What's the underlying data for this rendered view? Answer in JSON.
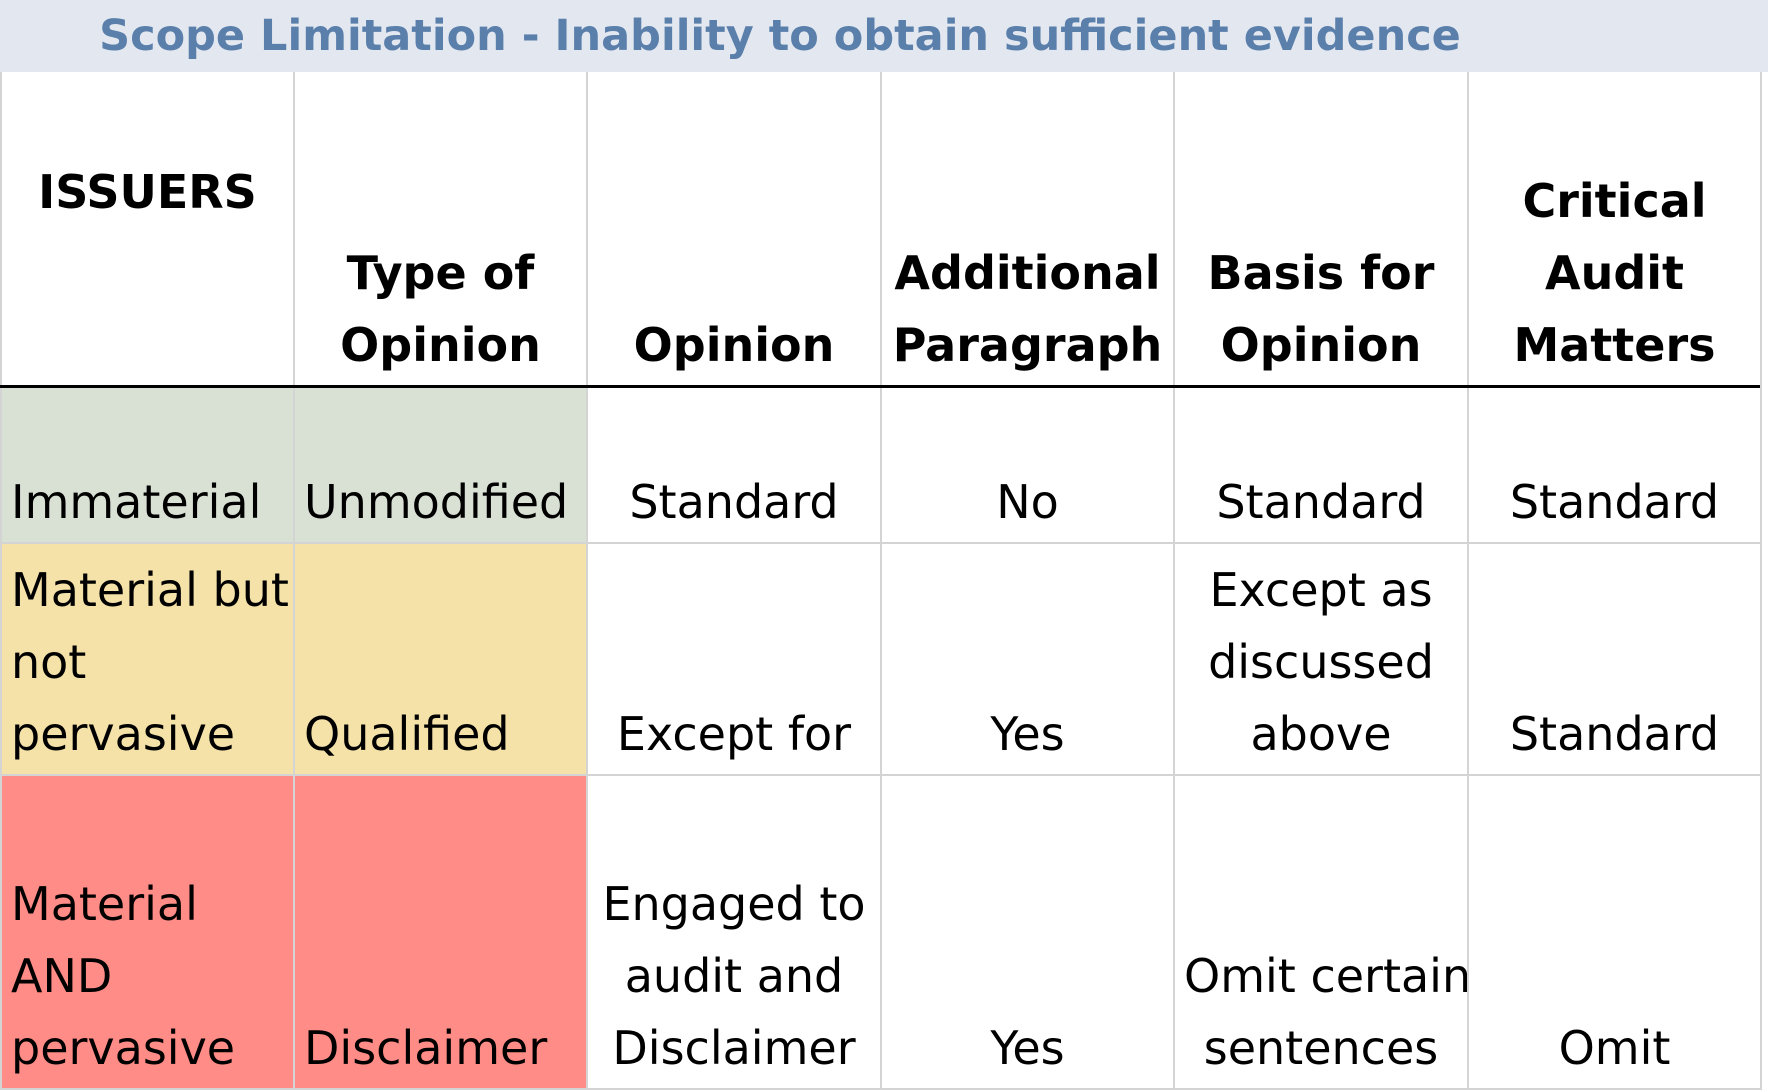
{
  "title": "Scope Limitation - Inability to obtain sufficient evidence",
  "headers": [
    [
      "ISSUERS"
    ],
    [
      "Type of",
      "Opinion"
    ],
    [
      "Opinion"
    ],
    [
      "Additional",
      "Paragraph"
    ],
    [
      "Basis for",
      "Opinion"
    ],
    [
      "Critical",
      "Audit",
      "Matters"
    ]
  ],
  "rows": [
    {
      "color": "#d9e1d4",
      "cells": [
        [
          "Immaterial"
        ],
        [
          "Unmodified"
        ],
        [
          "Standard"
        ],
        [
          "No"
        ],
        [
          "Standard"
        ],
        [
          "Standard"
        ]
      ]
    },
    {
      "color": "#f5e2a8",
      "cells": [
        [
          "Material but",
          "not",
          "pervasive"
        ],
        [
          "Qualified"
        ],
        [
          "Except for"
        ],
        [
          "Yes"
        ],
        [
          "Except as",
          "discussed",
          "above"
        ],
        [
          "Standard"
        ]
      ]
    },
    {
      "color": "#ff8c86",
      "cells": [
        [
          "Material",
          "AND",
          "pervasive"
        ],
        [
          "Disclaimer"
        ],
        [
          "Engaged to",
          "audit and",
          "Disclaimer"
        ],
        [
          "Yes"
        ],
        [
          "Omit certain",
          "sentences"
        ],
        [
          "Omit"
        ]
      ]
    }
  ]
}
